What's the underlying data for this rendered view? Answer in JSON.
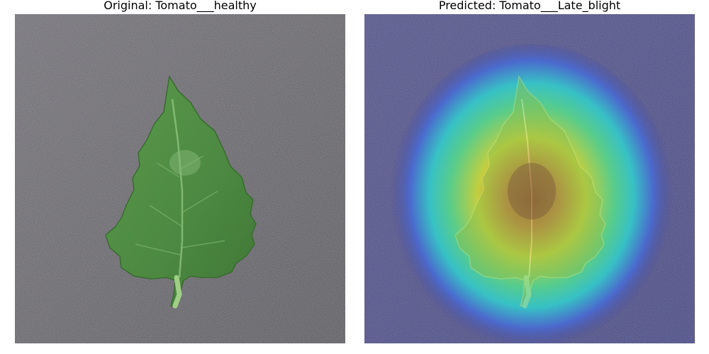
{
  "panels": {
    "original": {
      "title": "Original: Tomato___healthy"
    },
    "predicted": {
      "title": "Predicted: Tomato___Late_blight"
    }
  },
  "colors": {
    "background_gray": "#5c5a61",
    "leaf_green": "#4f8a43",
    "leaf_vein": "#9fcf86",
    "heatmap_outer": "#3b3d9a",
    "heatmap_cyan": "#35c6c8",
    "heatmap_yellow": "#c9d43a",
    "heatmap_center": "#b8442b"
  }
}
